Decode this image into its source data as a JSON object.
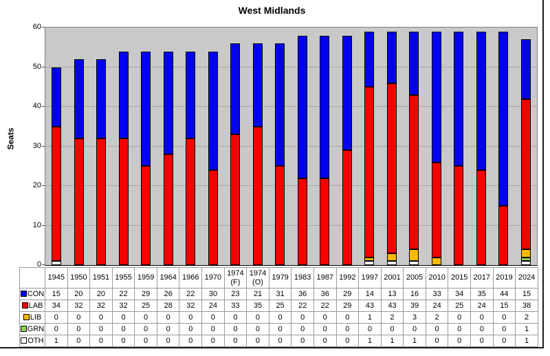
{
  "chart_data": {
    "type": "bar",
    "stacked": true,
    "title": "West Midlands",
    "ylabel": "Seats",
    "ylim": [
      0,
      60
    ],
    "yticks": [
      0,
      10,
      20,
      30,
      40,
      50,
      60
    ],
    "grid": true,
    "plot_bg": "#c9c9c9",
    "legend_position": "table-left",
    "categories": [
      "1945",
      "1950",
      "1951",
      "1955",
      "1959",
      "1964",
      "1966",
      "1970",
      "1974 (F)",
      "1974 (O)",
      "1979",
      "1983",
      "1987",
      "1992",
      "1997",
      "2001",
      "2005",
      "2010",
      "2015",
      "2017",
      "2019",
      "2024"
    ],
    "series": [
      {
        "name": "CON",
        "color": "#0202f0",
        "values": [
          15,
          20,
          20,
          22,
          29,
          26,
          22,
          30,
          23,
          21,
          31,
          36,
          36,
          29,
          14,
          13,
          16,
          33,
          34,
          35,
          44,
          15
        ]
      },
      {
        "name": "LAB",
        "color": "#f60000",
        "values": [
          34,
          32,
          32,
          32,
          25,
          28,
          32,
          24,
          33,
          35,
          25,
          22,
          22,
          29,
          43,
          43,
          39,
          24,
          25,
          24,
          15,
          38
        ]
      },
      {
        "name": "LIB",
        "color": "#ffb900",
        "values": [
          0,
          0,
          0,
          0,
          0,
          0,
          0,
          0,
          0,
          0,
          0,
          0,
          0,
          0,
          1,
          2,
          3,
          2,
          0,
          0,
          0,
          2
        ]
      },
      {
        "name": "GRN",
        "color": "#8fd24f",
        "values": [
          0,
          0,
          0,
          0,
          0,
          0,
          0,
          0,
          0,
          0,
          0,
          0,
          0,
          0,
          0,
          0,
          0,
          0,
          0,
          0,
          0,
          1
        ]
      },
      {
        "name": "OTH",
        "color": "#ffffff",
        "values": [
          1,
          0,
          0,
          0,
          0,
          0,
          0,
          0,
          0,
          0,
          0,
          0,
          0,
          0,
          1,
          1,
          1,
          0,
          0,
          0,
          0,
          1
        ]
      }
    ],
    "stack_order_bottom_to_top": [
      "OTH",
      "GRN",
      "LIB",
      "LAB",
      "CON"
    ]
  }
}
